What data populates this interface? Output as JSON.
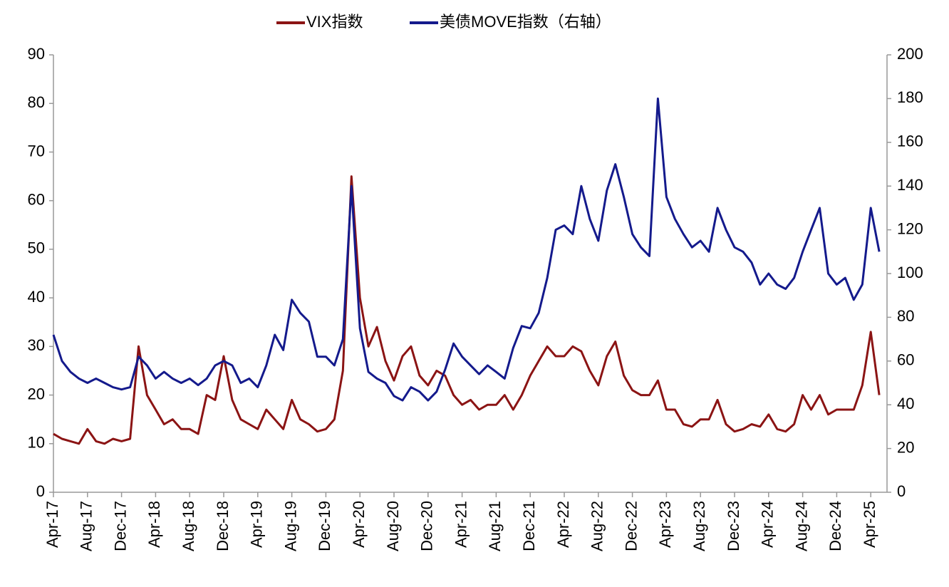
{
  "chart_data": {
    "type": "line",
    "categories": [
      "Apr-17",
      null,
      null,
      null,
      "Aug-17",
      null,
      null,
      null,
      "Dec-17",
      null,
      null,
      null,
      "Apr-18",
      null,
      null,
      null,
      "Aug-18",
      null,
      null,
      null,
      "Dec-18",
      null,
      null,
      null,
      "Apr-19",
      null,
      null,
      null,
      "Aug-19",
      null,
      null,
      null,
      "Dec-19",
      null,
      null,
      null,
      "Apr-20",
      null,
      null,
      null,
      "Aug-20",
      null,
      null,
      null,
      "Dec-20",
      null,
      null,
      null,
      "Apr-21",
      null,
      null,
      null,
      "Aug-21",
      null,
      null,
      null,
      "Dec-21",
      null,
      null,
      null,
      "Apr-22",
      null,
      null,
      null,
      "Aug-22",
      null,
      null,
      null,
      "Dec-22",
      null,
      null,
      null,
      "Apr-23",
      null,
      null,
      null,
      "Aug-23",
      null,
      null,
      null,
      "Dec-23",
      null,
      null,
      null,
      "Apr-24",
      null,
      null,
      null,
      "Aug-24",
      null,
      null,
      null,
      "Dec-24",
      null,
      null,
      null,
      "Apr-25",
      null
    ],
    "series": [
      {
        "name": "VIX指数",
        "color": "#8b1414",
        "values": [
          12,
          11,
          10.5,
          10,
          13,
          10.5,
          10,
          11,
          10.5,
          11,
          30,
          20,
          17,
          14,
          15,
          13,
          13,
          12,
          20,
          19,
          28,
          19,
          15,
          14,
          13,
          17,
          15,
          13,
          19,
          15,
          14,
          12.5,
          13,
          15,
          25,
          65,
          40,
          30,
          34,
          27,
          23,
          28,
          30,
          24,
          22,
          25,
          24,
          20,
          18,
          19,
          17,
          18,
          18,
          20,
          17,
          20,
          24,
          27,
          30,
          28,
          28,
          30,
          29,
          25,
          22,
          28,
          31,
          24,
          21,
          20,
          20,
          23,
          17,
          17,
          14,
          13.5,
          15,
          15,
          19,
          14,
          12.5,
          13,
          14,
          13.5,
          16,
          13,
          12.5,
          14,
          20,
          17,
          20,
          16,
          17,
          17,
          17,
          22,
          33,
          20
        ]
      },
      {
        "name": "美债MOVE指数（右轴）",
        "color": "#141a8c",
        "axis": "y2",
        "values": [
          72,
          60,
          55,
          52,
          50,
          52,
          50,
          48,
          47,
          48,
          62,
          58,
          52,
          55,
          52,
          50,
          52,
          49,
          52,
          58,
          60,
          58,
          50,
          52,
          48,
          58,
          72,
          65,
          88,
          82,
          78,
          62,
          62,
          58,
          70,
          140,
          75,
          55,
          52,
          50,
          44,
          42,
          48,
          46,
          42,
          46,
          56,
          68,
          62,
          58,
          54,
          58,
          55,
          52,
          66,
          76,
          75,
          82,
          98,
          120,
          122,
          118,
          140,
          125,
          115,
          138,
          150,
          135,
          118,
          112,
          108,
          180,
          135,
          125,
          118,
          112,
          115,
          110,
          130,
          120,
          112,
          110,
          105,
          95,
          100,
          95,
          93,
          98,
          110,
          120,
          130,
          100,
          95,
          98,
          88,
          95,
          130,
          110
        ]
      }
    ],
    "ylim": [
      0,
      90
    ],
    "yticks": [
      0,
      10,
      20,
      30,
      40,
      50,
      60,
      70,
      80,
      90
    ],
    "y2lim": [
      0,
      200
    ],
    "y2ticks": [
      0,
      20,
      40,
      60,
      80,
      100,
      120,
      140,
      160,
      180,
      200
    ],
    "legend": "top"
  }
}
